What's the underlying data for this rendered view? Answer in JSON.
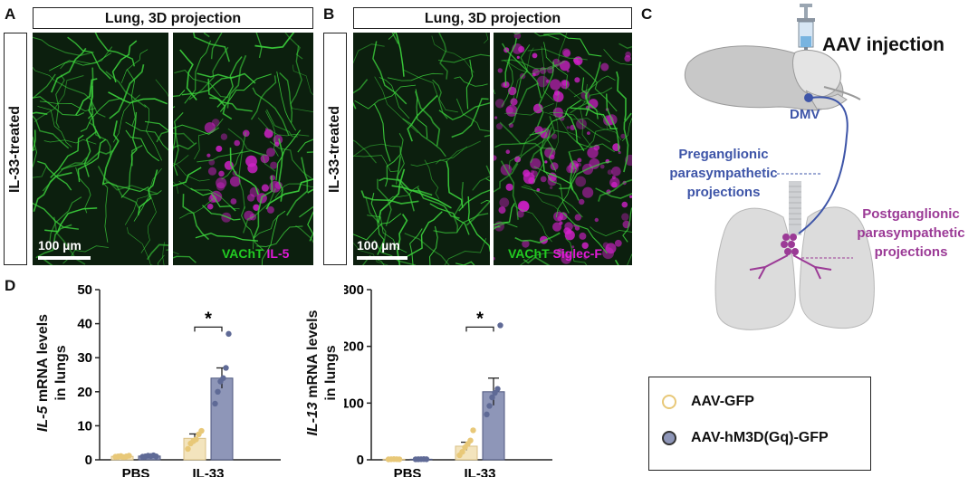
{
  "panels": {
    "A": {
      "letter": "A",
      "banner": "Lung, 3D projection",
      "side_label": "IL-33-treated",
      "scale_bar": "100 µm",
      "stain_1": "VAChT",
      "stain_2": "IL-5"
    },
    "B": {
      "letter": "B",
      "banner": "Lung, 3D projection",
      "side_label": "IL-33-treated",
      "scale_bar": "100 µm",
      "stain_1": "VAChT",
      "stain_2": "Siglec-F"
    },
    "C": {
      "letter": "C",
      "injection_label": "AAV injection",
      "dmv_label": "DMV",
      "pre_label_1": "Preganglionic",
      "pre_label_2": "parasympathetic",
      "pre_label_3": "projections",
      "post_label_1": "Postganglionic",
      "post_label_2": "parasympathetic",
      "post_label_3": "projections"
    },
    "D": {
      "letter": "D"
    }
  },
  "colors": {
    "gfp": "#e8c878",
    "gfp_bar": "#f3e4bd",
    "hm3d": "#5f6a96",
    "hm3d_bar": "#8e96b8",
    "pre_text": "#3e55a8",
    "post_text": "#9b3a96"
  },
  "legend": {
    "items": [
      {
        "label": "AAV-GFP",
        "color": "#e8c878"
      },
      {
        "label": "AAV-hM3D(Gq)-GFP",
        "color": "#5f6a96"
      }
    ]
  },
  "chart_data": [
    {
      "type": "bar",
      "ylabel_italic": "IL-5",
      "ylabel_rest": " mRNA levels",
      "ylabel_line2": "in lungs",
      "categories": [
        "PBS",
        "IL-33"
      ],
      "ylim": [
        0,
        50
      ],
      "yticks": [
        0,
        10,
        20,
        30,
        40,
        50
      ],
      "series": [
        {
          "name": "AAV-GFP",
          "values": [
            1.0,
            6.3
          ],
          "errors": [
            0.2,
            1.3
          ],
          "points": [
            [
              0.9,
              1.0,
              1.1,
              0.8,
              1.0,
              1.2
            ],
            [
              3.2,
              4.8,
              5.5,
              6.0,
              7.5,
              8.5
            ]
          ]
        },
        {
          "name": "AAV-hM3D(Gq)-GFP",
          "values": [
            1.1,
            24.0
          ],
          "errors": [
            0.2,
            3.0
          ],
          "points": [
            [
              0.9,
              1.0,
              1.2,
              1.1,
              1.3,
              1.0
            ],
            [
              16.5,
              20.0,
              23.0,
              24.0,
              27.0,
              37.0
            ]
          ]
        }
      ],
      "annotation": "*"
    },
    {
      "type": "bar",
      "ylabel_italic": "IL-13",
      "ylabel_rest": " mRNA levels",
      "ylabel_line2": "in lungs",
      "categories": [
        "PBS",
        "IL-33"
      ],
      "ylim": [
        0,
        300
      ],
      "yticks": [
        0,
        100,
        200,
        300
      ],
      "series": [
        {
          "name": "AAV-GFP",
          "values": [
            1.0,
            24.0
          ],
          "errors": [
            0.5,
            7.0
          ],
          "points": [
            [
              0.8,
              1.0,
              1.2,
              1.1,
              0.9
            ],
            [
              8.0,
              14.0,
              22.0,
              28.0,
              34.0,
              52.0
            ]
          ]
        },
        {
          "name": "AAV-hM3D(Gq)-GFP",
          "values": [
            1.0,
            120.0
          ],
          "errors": [
            0.5,
            24.0
          ],
          "points": [
            [
              0.9,
              1.0,
              1.1,
              1.2,
              1.0
            ],
            [
              80.0,
              95.0,
              110.0,
              118.0,
              125.0,
              237.0
            ]
          ]
        }
      ],
      "annotation": "*"
    }
  ]
}
